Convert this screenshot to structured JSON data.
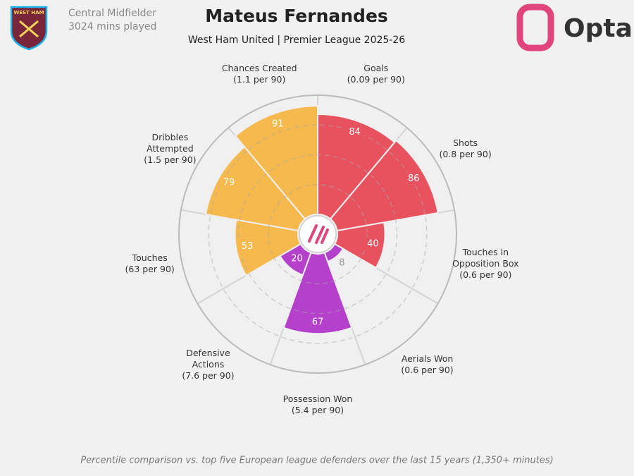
{
  "header": {
    "position": "Central Midfielder",
    "minutes": "3024 mins played",
    "badge": "WEST HAM",
    "logo": "Opta"
  },
  "chart_data": {
    "type": "pizza",
    "title": "Mateus Fernandes",
    "subtitle": "West Ham United | Premier League 2025-26",
    "categories": [
      "Goals",
      "Shots",
      "Touches in Opposition Box",
      "Aerials Won",
      "Possession Won",
      "Defensive Actions",
      "Touches",
      "Dribbles Attempted",
      "Chances Created"
    ],
    "rates": [
      "(0.09 per 90)",
      "(0.8 per 90)",
      "(0.6 per 90)",
      "(0.6 per 90)",
      "(5.4 per 90)",
      "(7.6 per 90)",
      "(63 per 90)",
      "(1.5 per 90)",
      "(1.1 per 90)"
    ],
    "values": [
      84,
      86,
      40,
      8,
      67,
      20,
      53,
      79,
      91
    ],
    "colors": [
      "#e8525f",
      "#e8525f",
      "#e8525f",
      "#b440cc",
      "#b440cc",
      "#b440cc",
      "#f5b94d",
      "#f5b94d",
      "#f5b94d"
    ],
    "rlim": [
      0,
      100
    ],
    "rticks": [
      25,
      50,
      75,
      100
    ],
    "note": "Percentile comparison vs. top five European league defenders over the last 15 years (1,350+ minutes)"
  }
}
